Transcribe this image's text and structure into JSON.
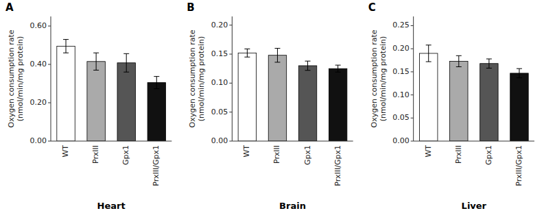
{
  "chart_data": [
    {
      "type": "bar",
      "title": "Heart",
      "annotations": [
        "A"
      ],
      "y_label": "Oxygen consumption rate\n(nmol/min/mg protein)",
      "categories": [
        "WT",
        "PrxIII",
        "Gpx1",
        "PrxIII/Gpx1"
      ],
      "values": [
        0.495,
        0.415,
        0.408,
        0.305
      ],
      "errors": [
        0.035,
        0.045,
        0.048,
        0.032
      ],
      "colors": [
        "white",
        "#aaaaaa",
        "#555555",
        "#111111"
      ],
      "ylim": [
        0,
        0.65
      ],
      "yticks": [
        {
          "value": 0.0,
          "label": "0.00"
        },
        {
          "value": 0.2,
          "label": "0.20"
        },
        {
          "value": 0.4,
          "label": "0.40"
        },
        {
          "value": 0.6,
          "label": "0.60"
        }
      ],
      "grid": false
    },
    {
      "type": "bar",
      "title": "Brain",
      "annotations": [
        "B"
      ],
      "y_label": "Oxygen consumption rate\n(nmol/min/mg protein)",
      "categories": [
        "WT",
        "PrxIII",
        "Gpx1",
        "PrxIII/Gpx1"
      ],
      "values": [
        0.152,
        0.148,
        0.13,
        0.125
      ],
      "errors": [
        0.007,
        0.012,
        0.008,
        0.006
      ],
      "colors": [
        "white",
        "#aaaaaa",
        "#555555",
        "#111111"
      ],
      "ylim": [
        0,
        0.215
      ],
      "yticks": [
        {
          "value": 0.0,
          "label": "0.00"
        },
        {
          "value": 0.05,
          "label": "0.05"
        },
        {
          "value": 0.1,
          "label": "0.10"
        },
        {
          "value": 0.15,
          "label": "0.15"
        },
        {
          "value": 0.2,
          "label": "0.20"
        }
      ],
      "grid": false
    },
    {
      "type": "bar",
      "title": "Liver",
      "annotations": [
        "C"
      ],
      "y_label": "Oxygen consumption rate\n(nmol/min/mg protein)",
      "categories": [
        "WT",
        "PrxIII",
        "Gpx1",
        "PrxIII/Gpx1"
      ],
      "values": [
        0.19,
        0.173,
        0.168,
        0.147
      ],
      "errors": [
        0.018,
        0.012,
        0.01,
        0.01
      ],
      "colors": [
        "white",
        "#aaaaaa",
        "#555555",
        "#111111"
      ],
      "ylim": [
        0,
        0.27
      ],
      "yticks": [
        {
          "value": 0.0,
          "label": "0.00"
        },
        {
          "value": 0.05,
          "label": "0.05"
        },
        {
          "value": 0.1,
          "label": "0.10"
        },
        {
          "value": 0.15,
          "label": "0.15"
        },
        {
          "value": 0.2,
          "label": "0.20"
        },
        {
          "value": 0.25,
          "label": "0.25"
        }
      ],
      "grid": false
    }
  ]
}
